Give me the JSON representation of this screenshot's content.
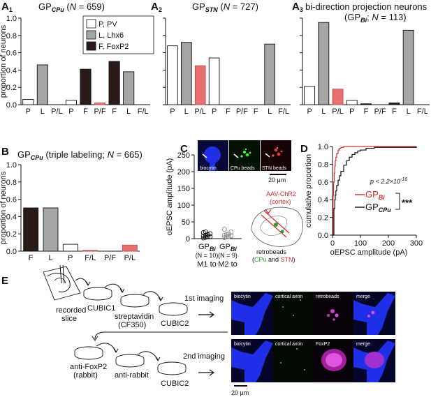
{
  "colors": {
    "P": "#ffffff",
    "L": "#a6a6a6",
    "F": "#2a1b18",
    "PF": "#e8706e",
    "edge": "#111111",
    "red": "#d42a2a",
    "green": "#2aa02a",
    "blue": "#1f2fe8"
  },
  "panels": {
    "A1": {
      "letter": "A",
      "num": "1"
    },
    "A2": {
      "letter": "A",
      "num": "2"
    },
    "A3": {
      "letter": "A",
      "num": "3"
    },
    "B": {
      "letter": "B"
    },
    "C": {
      "letter": "C"
    },
    "D": {
      "letter": "D"
    },
    "E": {
      "letter": "E"
    }
  },
  "legend": [
    "P, PV",
    "L, Lhx6",
    "F, FoxP2"
  ],
  "chart_data": [
    {
      "id": "A1",
      "type": "bar",
      "title": "GPCPu (N = 659)",
      "ylabel": "proportion of neurons",
      "ylim": [
        0,
        1
      ],
      "yticks": [
        0,
        0.2,
        0.4,
        0.6,
        0.8,
        1.0
      ],
      "tick_labels": [
        "P",
        "L",
        "P/L",
        "P",
        "F",
        "P/F",
        "F",
        "L",
        "F/L"
      ],
      "values": [
        0.06,
        0.46,
        0,
        0.05,
        0.41,
        0.02,
        0.5,
        0.38,
        0
      ],
      "fills": [
        "P",
        "L",
        "PF",
        "P",
        "F",
        "PF",
        "F",
        "L",
        "PF"
      ]
    },
    {
      "id": "A2",
      "type": "bar",
      "title": "GPSTN (N = 727)",
      "ylim": [
        0,
        1
      ],
      "yticks": [
        0,
        0.2,
        0.4,
        0.6,
        0.8,
        1.0
      ],
      "tick_labels": [
        "P",
        "L",
        "P/L",
        "P",
        "F",
        "P/F",
        "F",
        "L",
        "F/L"
      ],
      "values": [
        0.68,
        0.72,
        0.45,
        0.54,
        0,
        0,
        0,
        0.7,
        0
      ],
      "fills": [
        "P",
        "L",
        "PF",
        "P",
        "F",
        "PF",
        "F",
        "L",
        "PF"
      ]
    },
    {
      "id": "A3",
      "type": "bar",
      "title": "bi-direction projection neurons (GPBi; N = 113)",
      "ylim": [
        0,
        1
      ],
      "yticks": [
        0,
        0.2,
        0.4,
        0.6,
        0.8,
        1.0
      ],
      "tick_labels": [
        "P",
        "L",
        "P/L",
        "P",
        "F",
        "P/F",
        "F",
        "L",
        "F/L"
      ],
      "values": [
        0.21,
        0.95,
        0.18,
        0.05,
        0.01,
        0,
        0.02,
        0.86,
        0
      ],
      "fills": [
        "P",
        "L",
        "PF",
        "P",
        "F",
        "PF",
        "F",
        "L",
        "PF"
      ]
    },
    {
      "id": "B",
      "type": "bar",
      "title": "GPCPu (triple labeling; N = 665)",
      "ylabel": "proportion of neurons",
      "ylim": [
        0,
        1
      ],
      "yticks": [
        0,
        0.2,
        0.4,
        0.6,
        0.8,
        1.0
      ],
      "tick_labels": [
        "F",
        "L",
        "P",
        "F/L",
        "P/F",
        "P/L"
      ],
      "values": [
        0.5,
        0.5,
        0.08,
        0.01,
        0,
        0.07
      ],
      "fills": [
        "F",
        "L",
        "P",
        "PF",
        "PF",
        "PF"
      ]
    },
    {
      "id": "C",
      "type": "scatter",
      "ylabel": "oEPSC amplitude (pA)",
      "ylim": [
        0,
        250
      ],
      "yticks": [
        0,
        50,
        100,
        150,
        200,
        250
      ],
      "groups": [
        {
          "label": "GPBi",
          "n": "(N = 10)",
          "source": "M1 to",
          "values": [
            2,
            4,
            5,
            6,
            8,
            10,
            12,
            15,
            18,
            20
          ]
        },
        {
          "label": "GPBi",
          "n": "(N = 9)",
          "source": "M2 to",
          "values": [
            3,
            5,
            6,
            8,
            10,
            12,
            14,
            20,
            28
          ]
        }
      ]
    },
    {
      "id": "D",
      "type": "line",
      "xlabel": "oEPSC amplitude (pA)",
      "ylabel": "cumulative proportion",
      "xlim": [
        0,
        300
      ],
      "ylim": [
        0,
        1
      ],
      "xticks": [
        0,
        100,
        200,
        300
      ],
      "yticks": [
        0,
        0.2,
        0.4,
        0.6,
        0.8,
        1.0
      ],
      "pvalue": "p < 2.2×10",
      "pexp": "-16",
      "stars": "***",
      "series": [
        {
          "name": "GPBi",
          "x": [
            0,
            2,
            4,
            6,
            8,
            10,
            12,
            15,
            20,
            25,
            30,
            40,
            50,
            300
          ],
          "y": [
            0,
            0.45,
            0.6,
            0.7,
            0.78,
            0.84,
            0.88,
            0.92,
            0.96,
            0.98,
            0.99,
            1.0,
            1.0,
            1.0
          ]
        },
        {
          "name": "GPCPu",
          "x": [
            0,
            5,
            8,
            10,
            12,
            15,
            20,
            25,
            30,
            40,
            50,
            60,
            70,
            80,
            90,
            100,
            120,
            150,
            300
          ],
          "y": [
            0,
            0.3,
            0.4,
            0.45,
            0.5,
            0.56,
            0.62,
            0.67,
            0.72,
            0.79,
            0.84,
            0.88,
            0.91,
            0.93,
            0.95,
            0.96,
            0.98,
            0.99,
            1.0
          ]
        }
      ]
    }
  ],
  "panelC": {
    "images": [
      "biocytin",
      "CPu beads",
      "STN beads"
    ],
    "scale": "20 μm",
    "aav": "AAV-ChR2",
    "cortex": "(cortex)",
    "retro": "retrobeads",
    "retro_paren_open": "(",
    "retro_cpu": "CPu",
    "retro_and": " and ",
    "retro_stn": "STN",
    "retro_paren_close": ")"
  },
  "panelE": {
    "slice": "recorded slice",
    "steps": [
      "CUBIC1",
      "streptavidin",
      "(CF350)",
      "CUBIC2",
      "anti-FoxP2",
      "(rabbit)",
      "anti-rabbit",
      "CUBIC2"
    ],
    "imaging1": "1st imaging",
    "imaging2": "2nd imaging",
    "row1": [
      "biocytin",
      "cortical axon",
      "retrobeads",
      "merge"
    ],
    "row2": [
      "biocytin",
      "cortical axon",
      "FoxP2",
      "merge"
    ],
    "scale": "20 μm"
  }
}
